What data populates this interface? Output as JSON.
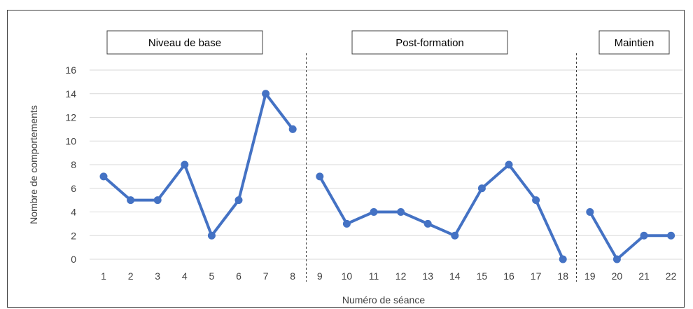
{
  "chart_data": {
    "type": "line",
    "xlabel": "Numéro de séance",
    "ylabel": "Nombre de comportements",
    "ylim": [
      0,
      16
    ],
    "yticks": [
      0,
      2,
      4,
      6,
      8,
      10,
      12,
      14,
      16
    ],
    "x": [
      1,
      2,
      3,
      4,
      5,
      6,
      7,
      8,
      9,
      10,
      11,
      12,
      13,
      14,
      15,
      16,
      17,
      18,
      19,
      20,
      21,
      22
    ],
    "grid": true,
    "color": "#4472c4",
    "phases": [
      {
        "label": "Niveau de base",
        "x": [
          1,
          2,
          3,
          4,
          5,
          6,
          7,
          8
        ],
        "values": [
          7,
          5,
          5,
          8,
          2,
          5,
          14,
          11
        ]
      },
      {
        "label": "Post-formation",
        "x": [
          9,
          10,
          11,
          12,
          13,
          14,
          15,
          16,
          17,
          18
        ],
        "values": [
          7,
          3,
          4,
          4,
          3,
          2,
          6,
          8,
          5,
          0
        ]
      },
      {
        "label": "Maintien",
        "x": [
          19,
          20,
          21,
          22
        ],
        "values": [
          4,
          0,
          2,
          2
        ]
      }
    ]
  }
}
